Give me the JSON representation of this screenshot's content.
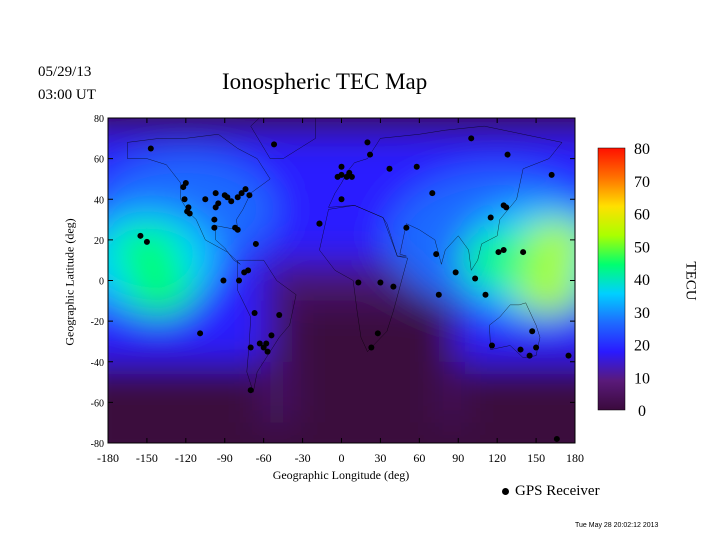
{
  "header": {
    "date": "05/29/13",
    "time": "03:00 UT"
  },
  "footer": {
    "timestamp": "Tue May 28 20:02:12 2013"
  },
  "chart_data": {
    "type": "heatmap",
    "title": "Ionospheric TEC Map",
    "xlabel": "Geographic Longitude (deg)",
    "ylabel": "Geographic Latitude (deg)",
    "xlim": [
      -180,
      180
    ],
    "ylim": [
      -80,
      80
    ],
    "xticks": [
      "-180",
      "-150",
      "-120",
      "-90",
      "-60",
      "-30",
      "0",
      "30",
      "60",
      "90",
      "120",
      "150",
      "180"
    ],
    "yticks": [
      "80",
      "60",
      "40",
      "20",
      "0",
      "-20",
      "-40",
      "-60",
      "-80"
    ],
    "colorbar": {
      "title": "TECU",
      "range": [
        0,
        80
      ],
      "ticks": [
        "80",
        "70",
        "60",
        "50",
        "40",
        "30",
        "20",
        "10",
        "0"
      ],
      "colors": [
        "#3a0a3c",
        "#5a1a7a",
        "#2a1aff",
        "#1e6bff",
        "#00d0ff",
        "#00ff70",
        "#aaff00",
        "#ffe000",
        "#ff7000",
        "#ff1000"
      ]
    },
    "tec_peaks": [
      {
        "lon": -150,
        "lat": 15,
        "tec": 48
      },
      {
        "lon": -140,
        "lat": -5,
        "tec": 42
      },
      {
        "lon": 165,
        "lat": 18,
        "tec": 55
      },
      {
        "lon": 160,
        "lat": -5,
        "tec": 50
      },
      {
        "lon": 120,
        "lat": 10,
        "tec": 40
      }
    ],
    "series": [
      {
        "name": "GPS Receiver",
        "points": [
          [
            -147,
            65
          ],
          [
            -120,
            48
          ],
          [
            -122,
            46
          ],
          [
            -121,
            40
          ],
          [
            -118,
            36
          ],
          [
            -119,
            34
          ],
          [
            -117,
            33
          ],
          [
            -105,
            40
          ],
          [
            -97,
            43
          ],
          [
            -90,
            42
          ],
          [
            -95,
            38
          ],
          [
            -97,
            36
          ],
          [
            -88,
            41
          ],
          [
            -85,
            39
          ],
          [
            -80,
            41
          ],
          [
            -74,
            45
          ],
          [
            -77,
            43
          ],
          [
            -71,
            42
          ],
          [
            -98,
            30
          ],
          [
            -98,
            26
          ],
          [
            -82,
            26
          ],
          [
            -80,
            25
          ],
          [
            -66,
            18
          ],
          [
            -155,
            22
          ],
          [
            -150,
            19
          ],
          [
            -91,
            0
          ],
          [
            -79,
            0
          ],
          [
            -75,
            4
          ],
          [
            -72,
            5
          ],
          [
            -52,
            67
          ],
          [
            -67,
            -16
          ],
          [
            -48,
            -17
          ],
          [
            -63,
            -31
          ],
          [
            -58,
            -31
          ],
          [
            -60,
            -33
          ],
          [
            -70,
            -33
          ],
          [
            -57,
            -35
          ],
          [
            -54,
            -27
          ],
          [
            -109,
            -26
          ],
          [
            0,
            52
          ],
          [
            4,
            51
          ],
          [
            6,
            53
          ],
          [
            8,
            51
          ],
          [
            0,
            56
          ],
          [
            -3,
            51
          ],
          [
            20,
            68
          ],
          [
            22,
            62
          ],
          [
            37,
            55
          ],
          [
            58,
            56
          ],
          [
            -17,
            28
          ],
          [
            0,
            40
          ],
          [
            70,
            43
          ],
          [
            50,
            26
          ],
          [
            100,
            70
          ],
          [
            128,
            62
          ],
          [
            88,
            4
          ],
          [
            13,
            -1
          ],
          [
            30,
            -1
          ],
          [
            40,
            -3
          ],
          [
            28,
            -26
          ],
          [
            23,
            -33
          ],
          [
            75,
            -7
          ],
          [
            73,
            13
          ],
          [
            125,
            37
          ],
          [
            127,
            36
          ],
          [
            140,
            14
          ],
          [
            111,
            -7
          ],
          [
            103,
            1
          ],
          [
            116,
            -32
          ],
          [
            138,
            -34
          ],
          [
            145,
            -37
          ],
          [
            150,
            -33
          ],
          [
            147,
            -25
          ],
          [
            175,
            -37
          ],
          [
            162,
            52
          ],
          [
            -17,
            28
          ],
          [
            115,
            31
          ],
          [
            121,
            14
          ],
          [
            125,
            15
          ],
          [
            -70,
            -54
          ],
          [
            166,
            -78
          ]
        ]
      }
    ]
  }
}
